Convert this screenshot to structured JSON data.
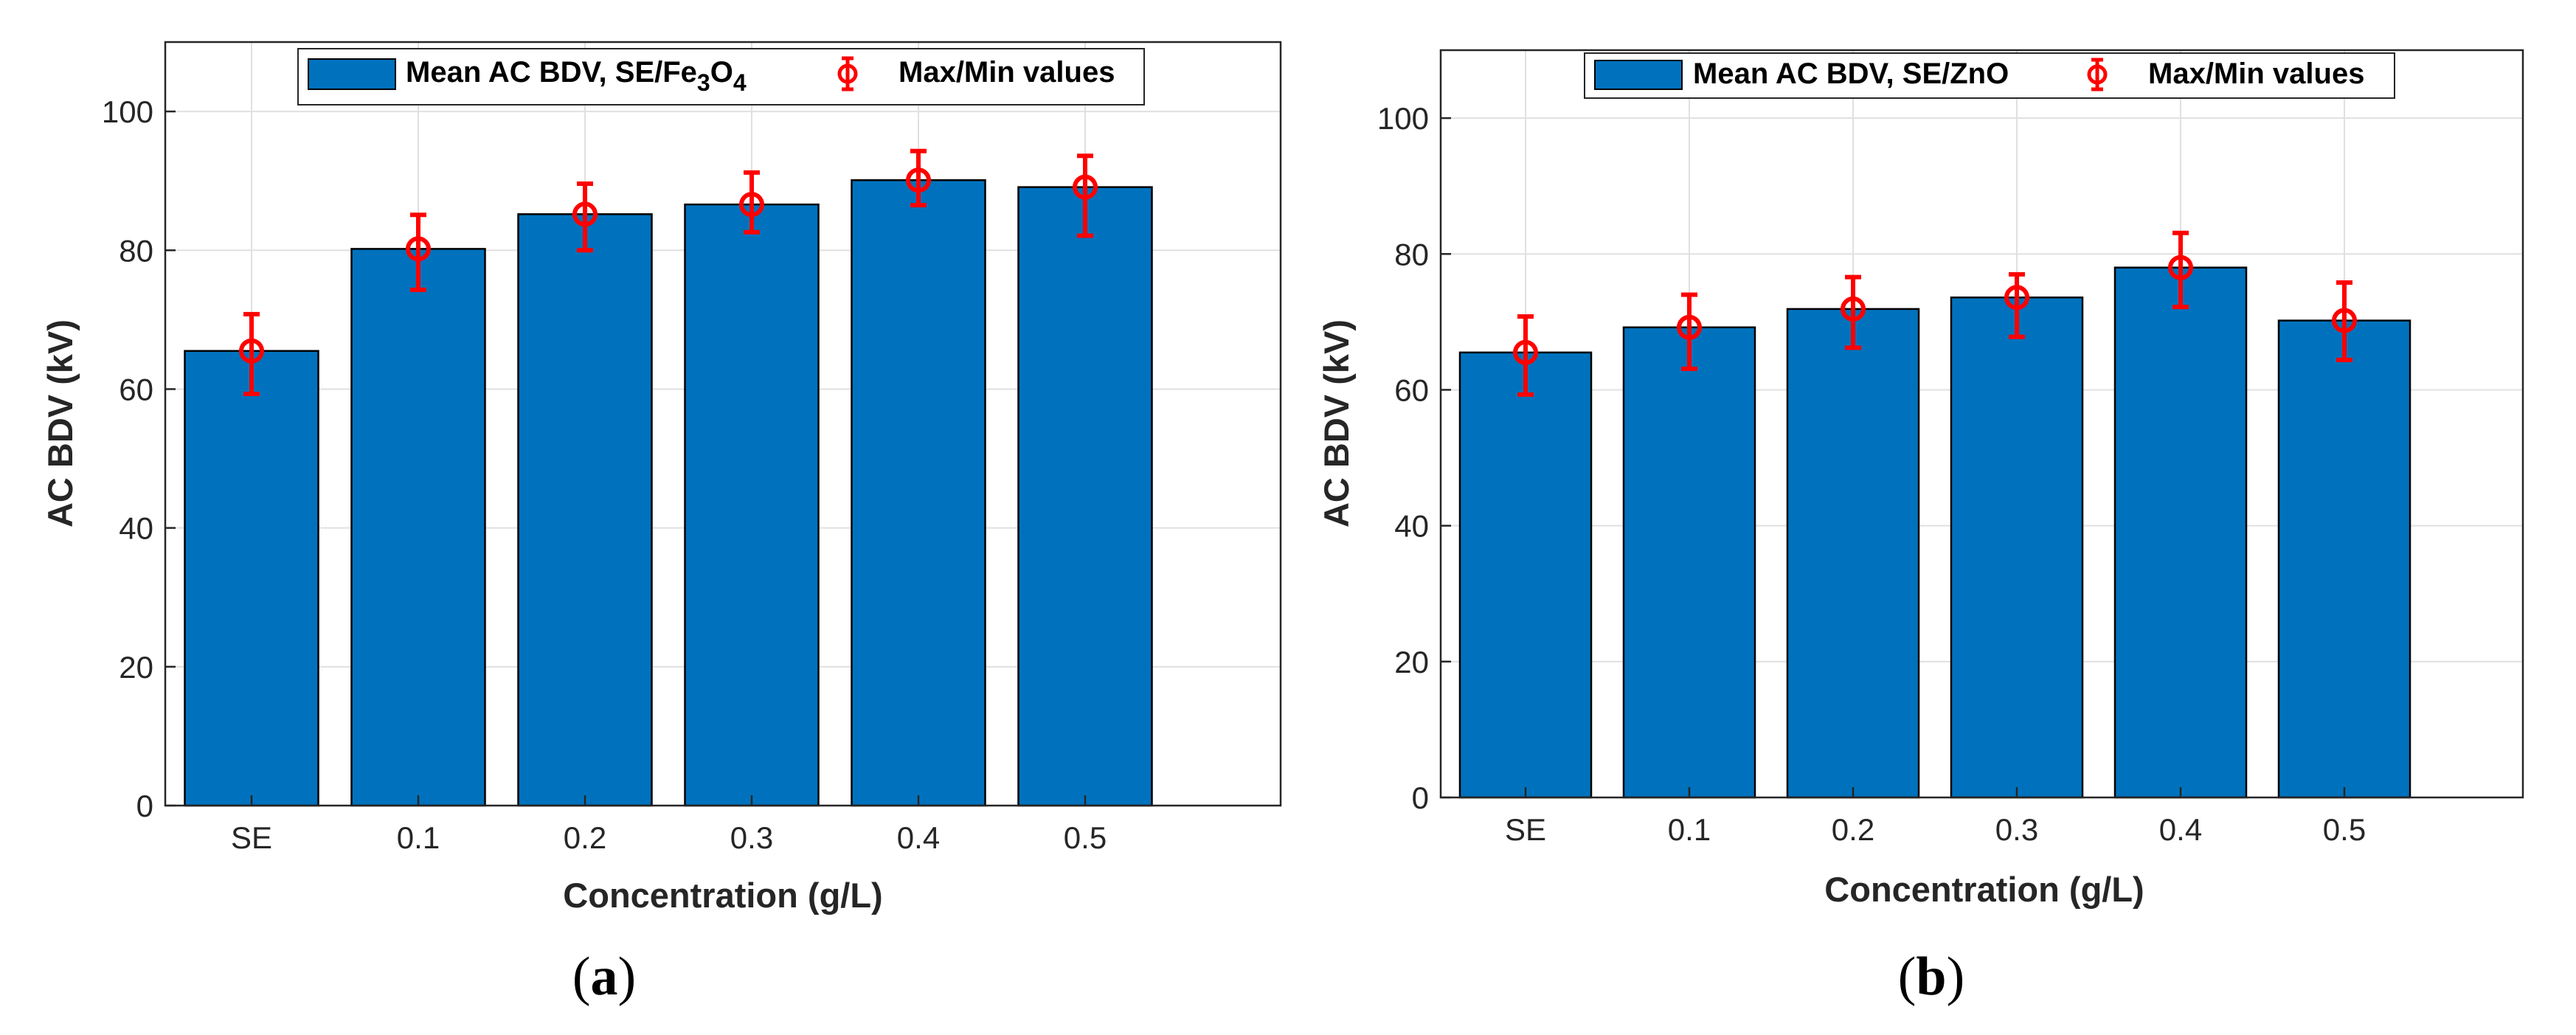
{
  "colors": {
    "bar_fill": "#0072BD",
    "bar_edge": "#000000",
    "error_marker": "#FF0000",
    "grid": "#E0E0E0",
    "axis": "#262626"
  },
  "chart_data": [
    {
      "type": "bar",
      "panel_label": "a",
      "categories": [
        "SE",
        "0.1",
        "0.2",
        "0.3",
        "0.4",
        "0.5"
      ],
      "series": [
        {
          "name": "Mean AC BDV, SE/Fe",
          "values": [
            65.5,
            80.2,
            85.2,
            86.6,
            90.1,
            89.1
          ]
        }
      ],
      "error_bars": {
        "name": "Max/Min values",
        "center": [
          65.5,
          80.2,
          85.2,
          86.6,
          90.1,
          89.1
        ],
        "max": [
          70.8,
          85.1,
          89.6,
          91.2,
          94.3,
          93.6
        ],
        "min": [
          59.3,
          74.3,
          80.0,
          82.6,
          86.5,
          82.1
        ]
      },
      "legend_parts": [
        "Mean AC BDV, SE/Fe",
        "3",
        "O",
        "4"
      ],
      "legend_errorbar_label": "Max/Min values",
      "xlabel": "Concentration (g/L)",
      "ylabel": "AC BDV (kV)",
      "ylim": [
        0,
        110
      ],
      "yticks": [
        0,
        20,
        40,
        60,
        80,
        100
      ],
      "grid": true,
      "legend_position": "top-center"
    },
    {
      "type": "bar",
      "panel_label": "b",
      "categories": [
        "SE",
        "0.1",
        "0.2",
        "0.3",
        "0.4",
        "0.5"
      ],
      "series": [
        {
          "name": "Mean AC BDV, SE/ZnO",
          "values": [
            65.5,
            69.2,
            71.9,
            73.6,
            78.0,
            70.2
          ]
        }
      ],
      "error_bars": {
        "name": "Max/Min values",
        "center": [
          65.5,
          69.2,
          71.9,
          73.6,
          78.0,
          70.2
        ],
        "max": [
          70.8,
          74.0,
          76.6,
          77.0,
          83.1,
          75.8
        ],
        "min": [
          59.3,
          63.1,
          66.2,
          67.8,
          72.2,
          64.4
        ]
      },
      "legend_parts": [
        "Mean AC BDV, SE/ZnO"
      ],
      "legend_errorbar_label": "Max/Min values",
      "xlabel": "Concentration (g/L)",
      "ylabel": "AC BDV (kV)",
      "ylim": [
        0,
        110
      ],
      "yticks": [
        0,
        20,
        40,
        60,
        80,
        100
      ],
      "grid": true,
      "legend_position": "top-center"
    }
  ]
}
